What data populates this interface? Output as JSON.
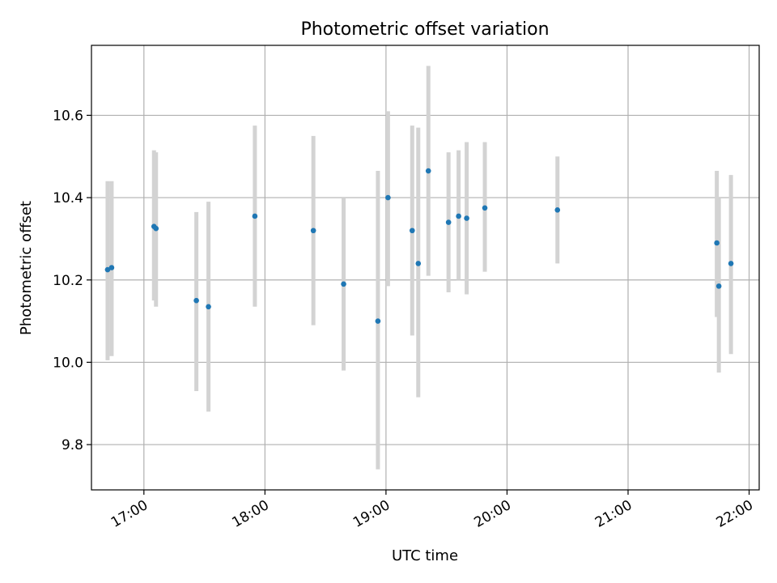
{
  "chart_data": {
    "type": "scatter",
    "title": "Photometric offset variation",
    "xlabel": "UTC time",
    "ylabel": "Photometric offset",
    "x_tick_labels": [
      "17:00",
      "18:00",
      "19:00",
      "20:00",
      "21:00",
      "22:00"
    ],
    "y_tick_labels": [
      "9.8",
      "10.0",
      "10.2",
      "10.4",
      "10.6"
    ],
    "xlim": [
      "16:34",
      "22:05"
    ],
    "ylim": [
      9.69,
      10.77
    ],
    "grid": true,
    "point_color": "#1f77b4",
    "errorbar_color": "#d3d3d3",
    "points": [
      {
        "x": "16:42",
        "y": 10.225,
        "lo": 10.005,
        "hi": 10.44
      },
      {
        "x": "16:44",
        "y": 10.23,
        "lo": 10.015,
        "hi": 10.44
      },
      {
        "x": "17:05",
        "y": 10.33,
        "lo": 10.15,
        "hi": 10.515
      },
      {
        "x": "17:06",
        "y": 10.325,
        "lo": 10.135,
        "hi": 10.51
      },
      {
        "x": "17:26",
        "y": 10.15,
        "lo": 9.93,
        "hi": 10.365
      },
      {
        "x": "17:32",
        "y": 10.135,
        "lo": 9.88,
        "hi": 10.39
      },
      {
        "x": "17:55",
        "y": 10.355,
        "lo": 10.135,
        "hi": 10.575
      },
      {
        "x": "18:24",
        "y": 10.32,
        "lo": 10.09,
        "hi": 10.55
      },
      {
        "x": "18:39",
        "y": 10.19,
        "lo": 9.98,
        "hi": 10.4
      },
      {
        "x": "18:56",
        "y": 10.1,
        "lo": 9.74,
        "hi": 10.465
      },
      {
        "x": "19:01",
        "y": 10.4,
        "lo": 10.185,
        "hi": 10.61
      },
      {
        "x": "19:13",
        "y": 10.32,
        "lo": 10.065,
        "hi": 10.575
      },
      {
        "x": "19:16",
        "y": 10.24,
        "lo": 9.915,
        "hi": 10.57
      },
      {
        "x": "19:21",
        "y": 10.465,
        "lo": 10.21,
        "hi": 10.72
      },
      {
        "x": "19:31",
        "y": 10.34,
        "lo": 10.17,
        "hi": 10.51
      },
      {
        "x": "19:36",
        "y": 10.355,
        "lo": 10.2,
        "hi": 10.515
      },
      {
        "x": "19:40",
        "y": 10.35,
        "lo": 10.165,
        "hi": 10.535
      },
      {
        "x": "19:49",
        "y": 10.375,
        "lo": 10.22,
        "hi": 10.535
      },
      {
        "x": "20:25",
        "y": 10.37,
        "lo": 10.24,
        "hi": 10.5
      },
      {
        "x": "21:44",
        "y": 10.29,
        "lo": 10.11,
        "hi": 10.465
      },
      {
        "x": "21:45",
        "y": 10.185,
        "lo": 9.975,
        "hi": 10.4
      },
      {
        "x": "21:51",
        "y": 10.24,
        "lo": 10.02,
        "hi": 10.455
      }
    ]
  }
}
